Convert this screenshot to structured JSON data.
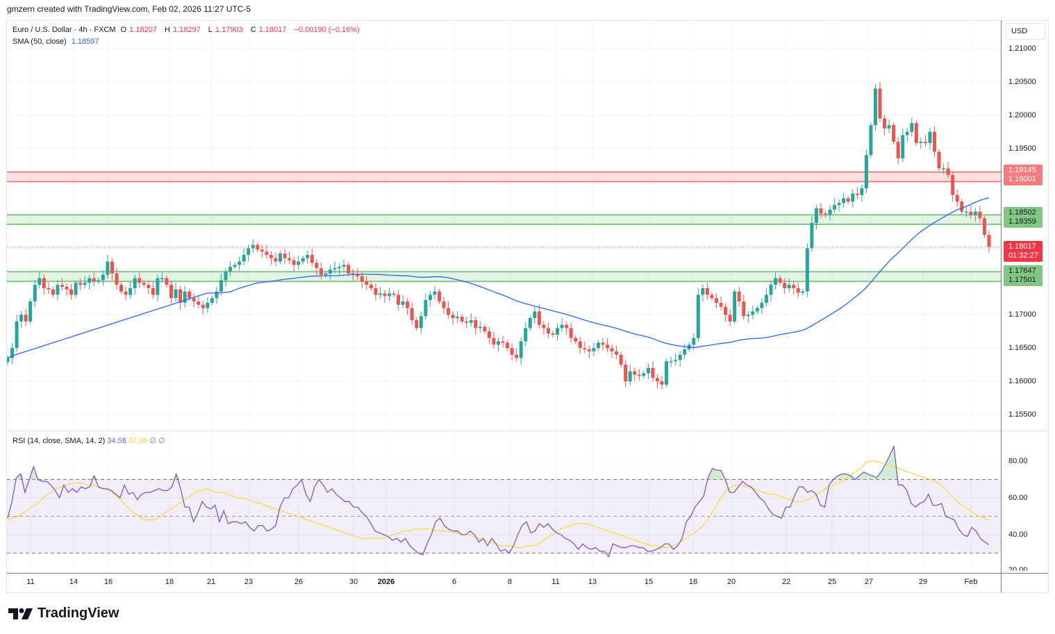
{
  "credit": "gmzern created with TradingView.com, Feb 02, 2026 11:27 UTC-5",
  "legend": {
    "symbol": "Euro / U.S. Dollar · 4h · FXCM",
    "open_label": "O",
    "open": "1.18207",
    "high_label": "H",
    "high": "1.18297",
    "low_label": "L",
    "low": "1.17903",
    "close_label": "C",
    "close": "1.18017",
    "change": "−0.00190 (−0.16%)",
    "sma_label": "SMA (50, close)",
    "sma_value": "1.18597"
  },
  "rsi_legend": {
    "label": "RSI (14, close, SMA, 14, 2)",
    "rsi_value": "34.58",
    "rsi_ma_value": "47.86",
    "extra1": "∅",
    "extra2": "∅"
  },
  "currency_button": "USD",
  "colors": {
    "up": "#26a69a",
    "down": "#ef5350",
    "sma": "#2962ff",
    "rsi": "#7e57c2",
    "rsi_ma": "#fdd835",
    "resistance_zone": "#f77c80",
    "support_zone": "#81c784"
  },
  "price_axis": {
    "ticks": [
      "1.21000",
      "1.20500",
      "1.20000",
      "1.19500",
      "1.17000",
      "1.16500",
      "1.16000",
      "1.15500"
    ],
    "badges": {
      "res_top": "1.19145",
      "res_bottom": "1.19001",
      "sup1_top": "1.18502",
      "sup1_bottom": "1.18359",
      "last_price": "1.18017",
      "countdown": "01:32:27",
      "sup2_top": "1.17647",
      "sup2_bottom": "1.17501"
    }
  },
  "rsi_axis": {
    "ticks": [
      "80.00",
      "60.00",
      "40.00",
      "20.00"
    ]
  },
  "time_axis": {
    "labels": [
      "11",
      "14",
      "16",
      "18",
      "21",
      "23",
      "26",
      "30",
      "2026",
      "6",
      "8",
      "11",
      "13",
      "15",
      "18",
      "20",
      "22",
      "25",
      "27",
      "29",
      "Feb"
    ]
  },
  "branding": "TradingView",
  "chart_data": {
    "type": "candlestick",
    "title": "Euro / U.S. Dollar · 4h · FXCM",
    "ylabel": "USD",
    "ylim": [
      1.1525,
      1.2115
    ],
    "x_tick_labels": [
      "11",
      "14",
      "16",
      "18",
      "21",
      "23",
      "26",
      "30",
      "2026",
      "6",
      "8",
      "11",
      "13",
      "15",
      "18",
      "20",
      "22",
      "25",
      "27",
      "29",
      "Feb"
    ],
    "zones": [
      {
        "name": "resistance",
        "top": 1.19145,
        "bottom": 1.19001,
        "color": "#f77c80"
      },
      {
        "name": "support_1",
        "top": 1.18502,
        "bottom": 1.18359,
        "color": "#81c784"
      },
      {
        "name": "support_2",
        "top": 1.17647,
        "bottom": 1.17501,
        "color": "#81c784"
      }
    ],
    "last_price": 1.18017,
    "sma_50_last": 1.18597,
    "ohlc_close_path": [
      1.1635,
      1.165,
      1.169,
      1.17,
      1.169,
      1.172,
      1.1745,
      1.1755,
      1.174,
      1.1738,
      1.173,
      1.1745,
      1.1742,
      1.1738,
      1.173,
      1.1748,
      1.1745,
      1.1748,
      1.1755,
      1.175,
      1.1752,
      1.176,
      1.178,
      1.1762,
      1.1745,
      1.1735,
      1.173,
      1.174,
      1.1755,
      1.1748,
      1.1745,
      1.174,
      1.173,
      1.1755,
      1.1755,
      1.1745,
      1.1725,
      1.1738,
      1.1718,
      1.1735,
      1.1725,
      1.172,
      1.1715,
      1.171,
      1.1718,
      1.1725,
      1.1735,
      1.1752,
      1.1765,
      1.1772,
      1.1775,
      1.178,
      1.179,
      1.18,
      1.1805,
      1.1798,
      1.1795,
      1.179,
      1.1785,
      1.178,
      1.1792,
      1.1785,
      1.1782,
      1.1775,
      1.178,
      1.1785,
      1.179,
      1.1778,
      1.177,
      1.176,
      1.1762,
      1.1768,
      1.177,
      1.1772,
      1.1775,
      1.1762,
      1.176,
      1.1758,
      1.175,
      1.1745,
      1.174,
      1.173,
      1.1732,
      1.1728,
      1.1732,
      1.173,
      1.1715,
      1.172,
      1.171,
      1.1692,
      1.168,
      1.1698,
      1.1722,
      1.173,
      1.1735,
      1.172,
      1.171,
      1.17,
      1.1695,
      1.1697,
      1.169,
      1.1688,
      1.1692,
      1.168,
      1.1682,
      1.1675,
      1.1665,
      1.1655,
      1.166,
      1.1658,
      1.165,
      1.164,
      1.1635,
      1.166,
      1.168,
      1.1695,
      1.1705,
      1.1685,
      1.168,
      1.1672,
      1.167,
      1.168,
      1.1685,
      1.168,
      1.1665,
      1.166,
      1.165,
      1.1648,
      1.1645,
      1.165,
      1.1658,
      1.1655,
      1.165,
      1.1645,
      1.164,
      1.1625,
      1.16,
      1.1615,
      1.161,
      1.1608,
      1.1612,
      1.162,
      1.1605,
      1.16,
      1.1595,
      1.163,
      1.163,
      1.1632,
      1.164,
      1.1648,
      1.1655,
      1.1665,
      1.173,
      1.174,
      1.173,
      1.1725,
      1.1718,
      1.1712,
      1.17,
      1.169,
      1.1735,
      1.172,
      1.1698,
      1.17,
      1.1705,
      1.171,
      1.1718,
      1.173,
      1.1745,
      1.1755,
      1.1748,
      1.174,
      1.1745,
      1.174,
      1.1733,
      1.1735,
      1.18,
      1.1838,
      1.186,
      1.1852,
      1.185,
      1.1858,
      1.1865,
      1.1868,
      1.1875,
      1.187,
      1.1882,
      1.188,
      1.189,
      1.194,
      1.1985,
      1.204,
      1.1995,
      1.198,
      1.1985,
      1.196,
      1.1935,
      1.197,
      1.1975,
      1.1988,
      1.1958,
      1.196,
      1.1958,
      1.1975,
      1.1945,
      1.192,
      1.192,
      1.191,
      1.188,
      1.187,
      1.1855,
      1.1855,
      1.185,
      1.1855,
      1.1845,
      1.182,
      1.1802
    ]
  },
  "rsi_chart": {
    "type": "line",
    "ylim": [
      20,
      92
    ],
    "levels": {
      "upper": 70,
      "middle": 50,
      "lower": 30
    },
    "rsi": [
      49,
      58,
      71,
      73,
      63,
      70,
      77,
      70,
      69,
      69,
      67,
      64,
      60,
      67,
      63,
      65,
      63,
      66,
      65,
      66,
      72,
      66,
      65,
      65,
      64,
      62,
      60,
      67,
      62,
      63,
      59,
      62,
      63,
      63,
      64,
      65,
      64,
      64,
      66,
      73,
      65,
      55,
      55,
      47,
      52,
      58,
      55,
      54,
      56,
      47,
      53,
      46,
      47,
      47,
      46,
      47,
      44,
      42,
      45,
      45,
      42,
      43,
      45,
      55,
      60,
      60,
      65,
      67,
      70,
      62,
      58,
      66,
      70,
      67,
      63,
      65,
      62,
      60,
      58,
      58,
      55,
      55,
      52,
      50,
      46,
      42,
      41,
      40,
      39,
      37,
      38,
      36,
      38,
      34,
      32,
      30,
      29,
      35,
      40,
      47,
      49,
      45,
      43,
      42,
      42,
      40,
      40,
      42,
      40,
      36,
      38,
      34,
      38,
      35,
      31,
      32,
      30,
      34,
      40,
      45,
      47,
      41,
      42,
      46,
      44,
      46,
      43,
      41,
      40,
      38,
      37,
      35,
      32,
      35,
      33,
      32,
      33,
      31,
      31,
      28,
      35,
      34,
      33,
      33,
      34,
      34,
      33,
      33,
      31,
      31,
      32,
      33,
      35,
      35,
      32,
      34,
      38,
      47,
      50,
      55,
      58,
      61,
      71,
      76,
      75,
      75,
      70,
      63,
      63,
      66,
      69,
      67,
      66,
      63,
      60,
      58,
      54,
      51,
      50,
      49,
      55,
      55,
      61,
      66,
      66,
      63,
      64,
      62,
      56,
      55,
      67,
      70,
      72,
      73,
      73,
      72,
      70,
      72,
      74,
      73,
      72,
      71,
      74,
      78,
      83,
      88,
      67,
      67,
      64,
      57,
      55,
      57,
      58,
      62,
      56,
      56,
      57,
      50,
      49,
      48,
      43,
      40,
      39,
      44,
      42,
      38,
      36,
      34.58
    ],
    "rsi_ma": [
      48,
      49,
      50,
      52,
      54,
      56,
      58,
      61,
      63,
      65,
      66,
      67,
      68,
      68,
      68,
      67,
      67,
      66,
      65,
      64,
      62,
      59,
      56,
      53,
      51,
      49,
      48,
      48,
      49,
      51,
      53,
      55,
      57,
      59,
      61,
      63,
      64,
      65,
      64,
      63,
      63,
      62,
      61,
      60,
      60,
      59,
      58,
      57,
      56,
      55,
      54,
      53,
      52,
      51,
      50,
      49,
      48,
      47,
      46,
      45,
      44,
      43,
      42,
      41,
      40,
      39,
      38,
      38,
      38,
      38,
      38,
      39,
      40,
      41,
      42,
      42,
      43,
      43,
      43,
      43,
      42,
      42,
      42,
      41,
      41,
      40,
      40,
      39,
      38,
      37,
      36,
      35,
      34,
      34,
      34,
      33,
      33,
      34,
      34,
      35,
      37,
      39,
      41,
      43,
      44,
      45,
      46,
      46,
      46,
      45,
      44,
      43,
      42,
      41,
      40,
      39,
      38,
      37,
      36,
      35,
      34,
      34,
      33,
      33,
      34,
      35,
      37,
      39,
      41,
      43,
      46,
      50,
      55,
      60,
      64,
      66,
      67,
      67,
      66,
      65,
      64,
      63,
      62,
      62,
      61,
      60,
      59,
      58,
      58,
      59,
      60,
      62,
      64,
      66,
      67,
      68,
      70,
      72,
      74,
      76,
      79,
      80,
      80,
      79,
      78,
      77,
      76,
      75,
      74,
      73,
      72,
      71,
      70,
      69,
      67,
      64,
      61,
      58,
      56,
      54,
      52,
      50,
      49,
      47.86
    ]
  }
}
